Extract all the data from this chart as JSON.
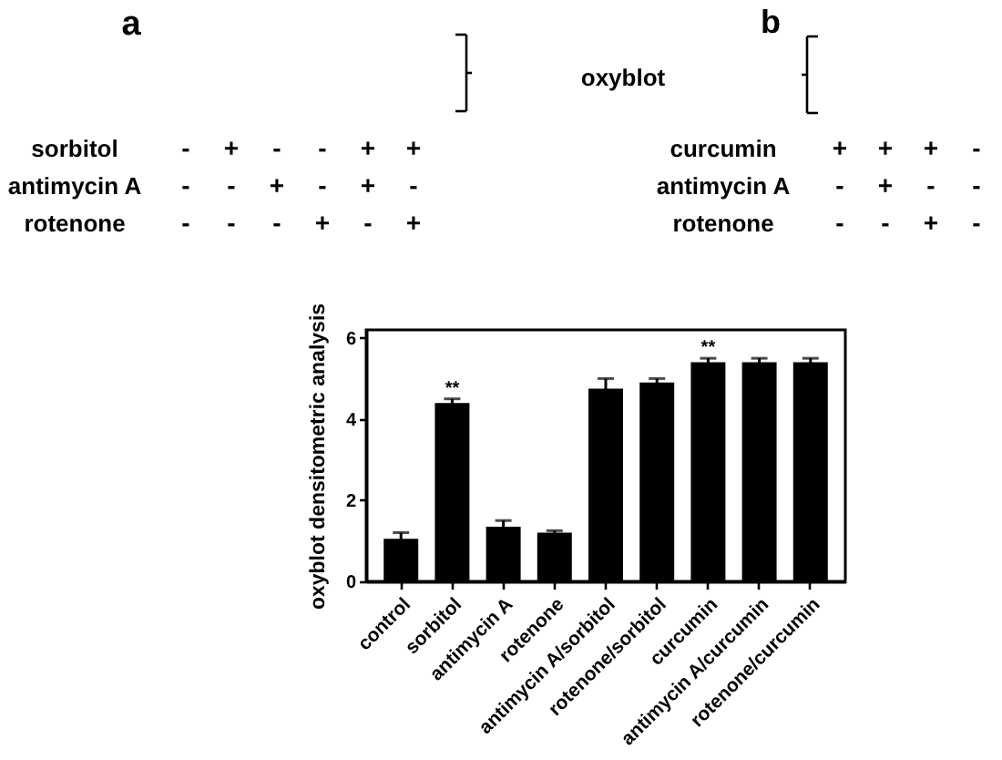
{
  "chart_data": [
    {
      "type": "other",
      "title": "a",
      "y_categories": [
        "sorbitol",
        "antimycin A",
        "rotenone"
      ],
      "cell_labels": [
        [
          "-",
          "+",
          "-",
          "-",
          "+",
          "+"
        ],
        [
          "-",
          "-",
          "+",
          "-",
          "+",
          "-"
        ],
        [
          "-",
          "-",
          "-",
          "+",
          "-",
          "+"
        ]
      ],
      "annotations": [
        "oxyblot"
      ]
    },
    {
      "type": "other",
      "title": "b",
      "y_categories": [
        "curcumin",
        "antimycin A",
        "rotenone"
      ],
      "cell_labels": [
        [
          "+",
          "+",
          "+",
          "-"
        ],
        [
          "-",
          "+",
          "-",
          "-"
        ],
        [
          "-",
          "-",
          "+",
          "-"
        ]
      ]
    },
    {
      "type": "bar",
      "ylabel": "oxyblot densitometric analysis",
      "categories": [
        "control",
        "sorbitol",
        "antimycin A",
        "rotenone",
        "antimycin A/sorbitol",
        "rotenone/sorbitol",
        "curcumin",
        "antimycin A/curcumin",
        "rotenone/curcumin"
      ],
      "values": [
        1.05,
        4.4,
        1.35,
        1.2,
        4.75,
        4.9,
        5.4,
        5.4,
        5.4
      ],
      "errors": [
        0.15,
        0.1,
        0.15,
        0.05,
        0.25,
        0.1,
        0.1,
        0.1,
        0.1
      ],
      "color": "#000000",
      "ylim": [
        0,
        6.2
      ],
      "yticks": [
        0,
        2,
        4,
        6
      ],
      "annotations": [
        {
          "text": "**",
          "x": "sorbitol",
          "y": 4.5
        },
        {
          "text": "**",
          "x": "curcumin",
          "y": 5.5
        }
      ]
    }
  ]
}
